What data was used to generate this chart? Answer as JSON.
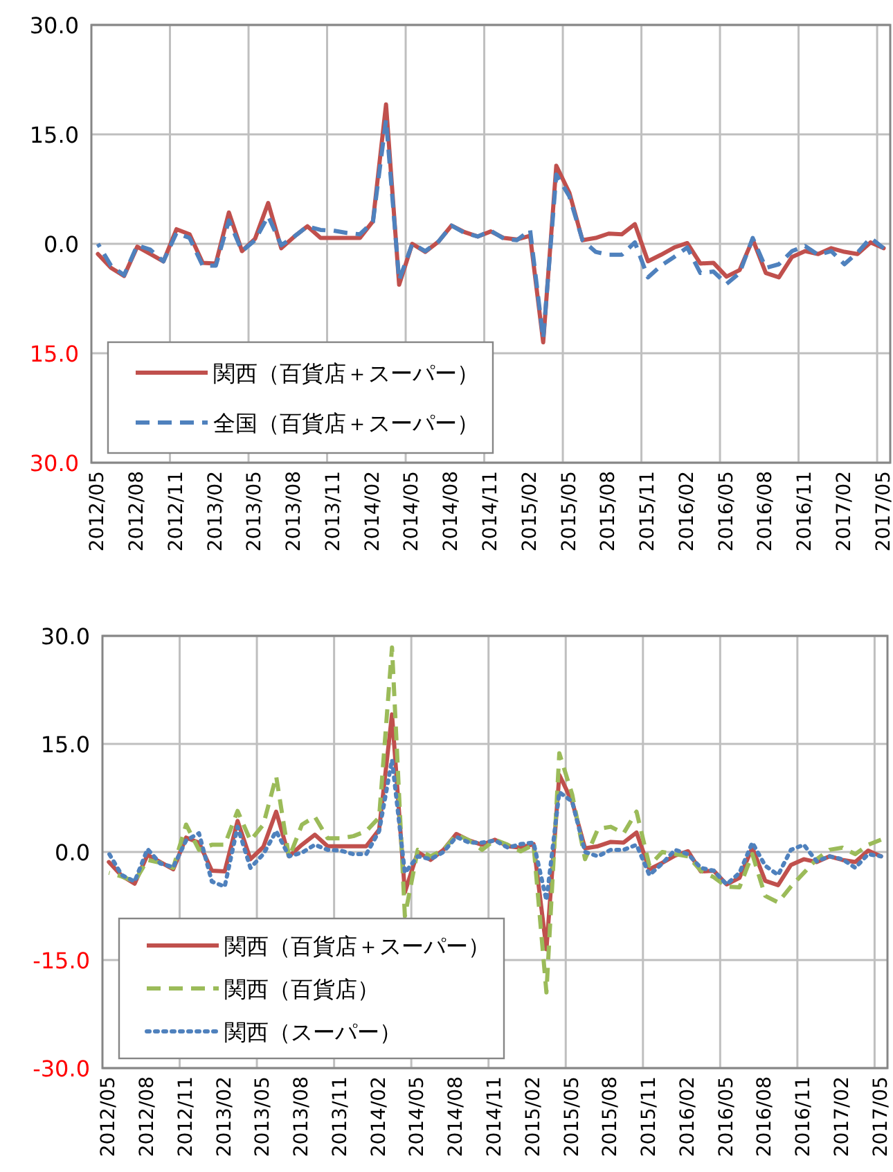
{
  "chart_data": [
    {
      "type": "line",
      "categories": [
        "2012/05",
        null,
        null,
        "2012/08",
        null,
        null,
        "2012/11",
        null,
        null,
        "2013/02",
        null,
        null,
        "2013/05",
        null,
        null,
        "2013/08",
        null,
        null,
        "2013/11",
        null,
        null,
        "2014/02",
        null,
        null,
        "2014/05",
        null,
        null,
        "2014/08",
        null,
        null,
        "2014/11",
        null,
        null,
        "2015/02",
        null,
        null,
        "2015/05",
        null,
        null,
        "2015/08",
        null,
        null,
        "2015/11",
        null,
        null,
        "2016/02",
        null,
        null,
        "2016/05",
        null,
        null,
        "2016/08",
        null,
        null,
        "2016/11",
        null,
        null,
        "2017/02",
        null,
        null,
        "2017/05"
      ],
      "series": [
        {
          "name": "関西（百貨店＋スーパー）",
          "color": "#c0504d",
          "line_style": "solid",
          "values": [
            -1.4,
            -3.3,
            -4.4,
            -0.4,
            -1.4,
            -2.4,
            2.0,
            1.3,
            -2.6,
            -2.7,
            4.3,
            -1.0,
            0.7,
            5.6,
            -0.6,
            1.0,
            2.4,
            0.8,
            0.8,
            0.8,
            0.8,
            3.1,
            19.1,
            -5.6,
            0,
            -1.1,
            0.3,
            2.5,
            1.6,
            1.0,
            1.7,
            0.8,
            0.6,
            1.1,
            -13.5,
            10.7,
            7.0,
            0.5,
            0.8,
            1.4,
            1.3,
            2.7,
            -2.4,
            -1.5,
            -0.5,
            0.1,
            -2.7,
            -2.6,
            -4.5,
            -3.6,
            0.6,
            -4.0,
            -4.6,
            -1.8,
            -1.0,
            -1.4,
            -0.6,
            -1.1,
            -1.4,
            0.2,
            -0.6
          ]
        },
        {
          "name": "全国（百貨店＋スーパー）",
          "color": "#4f81bd",
          "line_style": "dashed",
          "values": [
            0,
            -3.0,
            -4.3,
            -0.2,
            -0.8,
            -2.4,
            1.5,
            0.8,
            -3.0,
            -3.0,
            3.2,
            -1.0,
            0.5,
            3.8,
            -0.2,
            1.0,
            2.4,
            1.9,
            1.8,
            1.5,
            1.3,
            3.0,
            17.0,
            -5.0,
            0,
            -1.0,
            0.3,
            2.5,
            1.5,
            1.0,
            1.8,
            0.7,
            0.5,
            1.9,
            -13.0,
            9.5,
            6.5,
            0.5,
            -1.1,
            -1.5,
            -1.5,
            0.2,
            -4.6,
            -3.0,
            -1.8,
            -0.5,
            -4.0,
            -3.8,
            -5.5,
            -4.0,
            0.8,
            -3.3,
            -2.8,
            -1.0,
            -0.3,
            -1.5,
            -1.0,
            -2.8,
            -1.2,
            0.8,
            -0.6
          ]
        }
      ],
      "ylim": [
        -30,
        30
      ],
      "yticks": [
        {
          "value": -30,
          "label": "30.0"
        },
        {
          "value": -15,
          "label": "15.0"
        },
        {
          "value": 0,
          "label": "0.0"
        },
        {
          "value": 15,
          "label": "15.0"
        },
        {
          "value": 30,
          "label": "30.0"
        }
      ],
      "grid": true,
      "legend": "bottom left"
    },
    {
      "type": "line",
      "categories": [
        "2012/05",
        null,
        null,
        "2012/08",
        null,
        null,
        "2012/11",
        null,
        null,
        "2013/02",
        null,
        null,
        "2013/05",
        null,
        null,
        "2013/08",
        null,
        null,
        "2013/11",
        null,
        null,
        "2014/02",
        null,
        null,
        "2014/05",
        null,
        null,
        "2014/08",
        null,
        null,
        "2014/11",
        null,
        null,
        "2015/02",
        null,
        null,
        "2015/05",
        null,
        null,
        "2015/08",
        null,
        null,
        "2015/11",
        null,
        null,
        "2016/02",
        null,
        null,
        "2016/05",
        null,
        null,
        "2016/08",
        null,
        null,
        "2016/11",
        null,
        null,
        "2017/02",
        null,
        null,
        "2017/05"
      ],
      "series": [
        {
          "name": "関西（百貨店＋スーパー）",
          "color": "#c0504d",
          "line_style": "solid",
          "values": [
            -1.4,
            -3.3,
            -4.4,
            -0.4,
            -1.4,
            -2.4,
            2.0,
            1.3,
            -2.6,
            -2.7,
            4.3,
            -1.0,
            0.7,
            5.6,
            -0.6,
            1.0,
            2.4,
            0.8,
            0.8,
            0.8,
            0.8,
            3.1,
            19.1,
            -5.6,
            0,
            -1.1,
            0.3,
            2.5,
            1.6,
            1.0,
            1.7,
            0.8,
            0.6,
            1.1,
            -13.5,
            10.7,
            7.0,
            0.5,
            0.8,
            1.4,
            1.3,
            2.7,
            -2.4,
            -1.5,
            -0.5,
            0.1,
            -2.7,
            -2.6,
            -4.5,
            -3.6,
            0.6,
            -4.0,
            -4.6,
            -1.8,
            -1.0,
            -1.4,
            -0.6,
            -1.1,
            -1.4,
            0.2,
            -0.6
          ]
        },
        {
          "name": "関西（百貨店）",
          "color": "#9bbb59",
          "line_style": "dashed",
          "values": [
            -2.9,
            -3.4,
            -4.1,
            -1.1,
            -1.5,
            -2.2,
            3.8,
            0.3,
            1.0,
            1.0,
            5.7,
            1.6,
            3.8,
            10.5,
            -0.8,
            3.8,
            4.9,
            1.9,
            1.9,
            2.2,
            2.9,
            4.8,
            28.4,
            -8.9,
            0.3,
            -0.6,
            0.3,
            2.4,
            1.6,
            0.3,
            1.7,
            1.0,
            0.1,
            1.0,
            -19.5,
            13.7,
            8.0,
            -1.0,
            3.2,
            3.5,
            2.6,
            5.6,
            -1.9,
            0,
            -0.3,
            -0.6,
            -2.6,
            -3.5,
            -4.8,
            -4.9,
            -0.3,
            -6.1,
            -7.0,
            -4.8,
            -2.9,
            -1.0,
            0.3,
            0.6,
            -0.3,
            1.0,
            1.7
          ]
        },
        {
          "name": "関西（スーパー）",
          "color": "#4f81bd",
          "line_style": "dotted",
          "values": [
            -0.2,
            -3.2,
            -4.1,
            0.4,
            -1.6,
            -2.1,
            1.6,
            2.6,
            -4.1,
            -4.8,
            3.5,
            -2.2,
            -0.3,
            2.9,
            -0.6,
            -0.1,
            1.0,
            0.3,
            0.2,
            -0.3,
            -0.3,
            2.9,
            12.8,
            -2.9,
            -0.6,
            -1.0,
            0,
            2.1,
            1.3,
            1.3,
            1.6,
            0.6,
            1.1,
            1.3,
            -6.7,
            8.3,
            7.0,
            0,
            -0.6,
            0.3,
            0.3,
            1.0,
            -3.2,
            -1.6,
            0.3,
            -0.3,
            -2.2,
            -2.6,
            -4.5,
            -2.9,
            1.3,
            -1.9,
            -3.2,
            0.3,
            1.0,
            -1.3,
            -0.6,
            -1.0,
            -2.2,
            -0.3,
            -0.6
          ]
        }
      ],
      "ylim": [
        -30,
        30
      ],
      "yticks": [
        {
          "value": -30,
          "label": "-30.0"
        },
        {
          "value": -15,
          "label": "-15.0"
        },
        {
          "value": 0,
          "label": "0.0"
        },
        {
          "value": 15,
          "label": "15.0"
        },
        {
          "value": 30,
          "label": "30.0"
        }
      ],
      "grid": true,
      "legend": "bottom left"
    }
  ]
}
